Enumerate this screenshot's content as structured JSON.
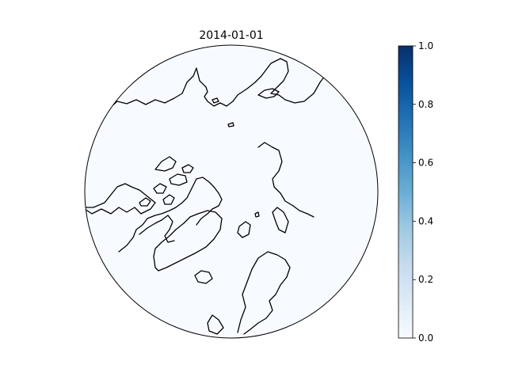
{
  "map": {
    "title": "2014-01-01",
    "projection": "north-polar-stereographic",
    "fill_color": "#f7fbff",
    "boundary_color": "#000000",
    "coastline_color": "#000000",
    "field_value": 0.0
  },
  "colorbar": {
    "colormap": "Blues",
    "min": 0.0,
    "max": 1.0,
    "orientation": "vertical",
    "color_min": "#f7fbff",
    "color_max": "#08306b",
    "ticks": [
      "0.0",
      "0.2",
      "0.4",
      "0.6",
      "0.8",
      "1.0"
    ]
  }
}
